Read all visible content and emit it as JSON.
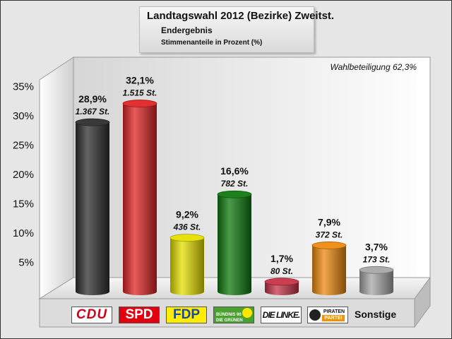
{
  "title": "Landtagswahl 2012 (Bezirke) Zweitst.",
  "subtitle": "Endergebnis",
  "subtitle2": "Stimmenanteile in Prozent (%)",
  "turnout": "Wahlbeteiligung 62,3%",
  "chart_data": {
    "type": "bar",
    "categories": [
      "CDU",
      "SPD",
      "FDP",
      "BÜNDNIS 90 DIE GRÜNEN",
      "DIE LINKE.",
      "PIRATEN PARTEI",
      "Sonstige"
    ],
    "values": [
      28.9,
      32.1,
      9.2,
      16.6,
      1.7,
      7.9,
      3.7
    ],
    "value_labels": [
      "28,9%",
      "32,1%",
      "9,2%",
      "16,6%",
      "1,7%",
      "7,9%",
      "3,7%"
    ],
    "vote_labels": [
      "1.367 St.",
      "1.515 St.",
      "436 St.",
      "782 St.",
      "80 St.",
      "372 St.",
      "173 St."
    ],
    "ylim": [
      0,
      35
    ],
    "yticks": [
      5,
      10,
      15,
      20,
      25,
      30,
      35
    ],
    "ytick_labels": [
      "5%",
      "10%",
      "15%",
      "20%",
      "25%",
      "30%",
      "35%"
    ],
    "colors": [
      "#2f2f2f",
      "#e02424",
      "#e6e000",
      "#0f7a0f",
      "#c83448",
      "#ee8a10",
      "#a8a8a8"
    ],
    "grid": false
  },
  "legend": {
    "cdu": "CDU",
    "spd": "SPD",
    "fdp": "FDP",
    "gruene_top": "BÜNDNIS 90",
    "gruene_bottom": "DIE GRÜNEN",
    "linke": "DIE LINKE.",
    "piraten_top": "PIRATEN",
    "piraten_bottom": "PARTEI",
    "sonstige": "Sonstige"
  }
}
